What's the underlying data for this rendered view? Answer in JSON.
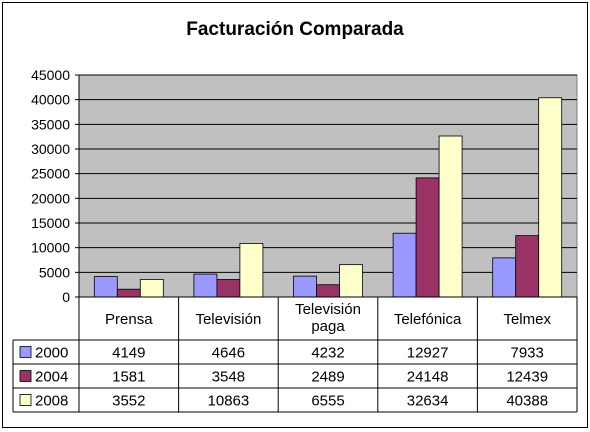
{
  "chart_data": {
    "type": "bar",
    "title": "Facturación Comparada",
    "categories": [
      [
        "Prensa"
      ],
      [
        "Televisión"
      ],
      [
        "Televisión",
        "paga"
      ],
      [
        "Telefónica"
      ],
      [
        "Telmex"
      ]
    ],
    "series": [
      {
        "name": "2000",
        "color": "#9999ff",
        "values": [
          4149,
          4646,
          4232,
          12927,
          7933
        ]
      },
      {
        "name": "2004",
        "color": "#993366",
        "values": [
          1581,
          3548,
          2489,
          24148,
          12439
        ]
      },
      {
        "name": "2008",
        "color": "#ffffcc",
        "values": [
          3552,
          10863,
          6555,
          32634,
          40388
        ]
      }
    ],
    "ylim": [
      0,
      45000
    ],
    "yticks": [
      0,
      5000,
      10000,
      15000,
      20000,
      25000,
      30000,
      35000,
      40000,
      45000
    ],
    "plot_background": "#c0c0c0",
    "grid": true,
    "data_table": true
  }
}
